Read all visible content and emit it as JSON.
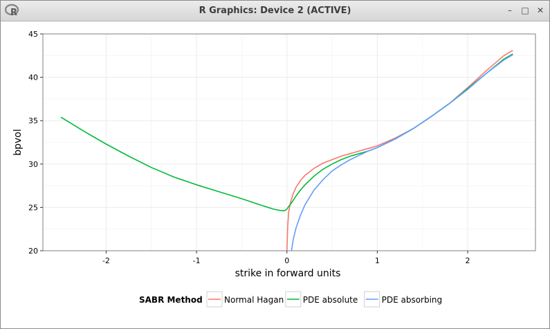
{
  "window": {
    "title": "R Graphics: Device 2 (ACTIVE)",
    "buttons": {
      "minimize": "–",
      "maximize": "□",
      "close": "✕"
    },
    "logo_icon": "r-logo-icon"
  },
  "chart_data": {
    "type": "line",
    "xlabel": "strike in forward units",
    "ylabel": "bpvol",
    "xlim": [
      -2.7,
      2.75
    ],
    "ylim": [
      20,
      45
    ],
    "xticks": [
      -2,
      -1,
      0,
      1,
      2
    ],
    "xtick_labels": [
      "-2",
      "-1",
      "0",
      "1",
      "2"
    ],
    "yticks": [
      20,
      25,
      30,
      35,
      40,
      45
    ],
    "ytick_labels": [
      "20",
      "25",
      "30",
      "35",
      "40",
      "45"
    ],
    "grid": true,
    "legend": {
      "position": "bottom",
      "title": "SABR Method"
    },
    "series": [
      {
        "name": "Normal Hagan",
        "color": "#F8766D",
        "points": [
          [
            0.0,
            20.0
          ],
          [
            0.01,
            23.0
          ],
          [
            0.02,
            24.5
          ],
          [
            0.04,
            25.6
          ],
          [
            0.07,
            26.6
          ],
          [
            0.1,
            27.3
          ],
          [
            0.15,
            28.1
          ],
          [
            0.2,
            28.7
          ],
          [
            0.3,
            29.5
          ],
          [
            0.4,
            30.1
          ],
          [
            0.5,
            30.5
          ],
          [
            0.6,
            30.9
          ],
          [
            0.7,
            31.2
          ],
          [
            0.8,
            31.5
          ],
          [
            0.9,
            31.8
          ],
          [
            1.0,
            32.1
          ],
          [
            1.2,
            33.0
          ],
          [
            1.4,
            34.1
          ],
          [
            1.6,
            35.5
          ],
          [
            1.8,
            37.0
          ],
          [
            2.0,
            38.8
          ],
          [
            2.2,
            40.7
          ],
          [
            2.4,
            42.5
          ],
          [
            2.5,
            43.1
          ]
        ]
      },
      {
        "name": "PDE absolute",
        "color": "#00BA38",
        "points": [
          [
            -2.5,
            35.4
          ],
          [
            -2.25,
            33.8
          ],
          [
            -2.0,
            32.3
          ],
          [
            -1.75,
            30.9
          ],
          [
            -1.5,
            29.6
          ],
          [
            -1.25,
            28.5
          ],
          [
            -1.0,
            27.6
          ],
          [
            -0.75,
            26.8
          ],
          [
            -0.5,
            26.0
          ],
          [
            -0.3,
            25.3
          ],
          [
            -0.15,
            24.8
          ],
          [
            -0.05,
            24.6
          ],
          [
            -0.02,
            24.65
          ],
          [
            0.0,
            24.8
          ],
          [
            0.02,
            25.1
          ],
          [
            0.05,
            25.5
          ],
          [
            0.1,
            26.3
          ],
          [
            0.15,
            27.0
          ],
          [
            0.2,
            27.6
          ],
          [
            0.3,
            28.6
          ],
          [
            0.4,
            29.4
          ],
          [
            0.5,
            30.0
          ],
          [
            0.6,
            30.5
          ],
          [
            0.7,
            30.9
          ],
          [
            0.8,
            31.2
          ],
          [
            0.9,
            31.5
          ],
          [
            1.0,
            31.9
          ],
          [
            1.2,
            32.9
          ],
          [
            1.4,
            34.1
          ],
          [
            1.6,
            35.5
          ],
          [
            1.8,
            37.0
          ],
          [
            2.0,
            38.7
          ],
          [
            2.2,
            40.4
          ],
          [
            2.4,
            42.1
          ],
          [
            2.5,
            42.7
          ]
        ]
      },
      {
        "name": "PDE absorbing",
        "color": "#619CFF",
        "points": [
          [
            0.05,
            20.0
          ],
          [
            0.07,
            21.3
          ],
          [
            0.1,
            22.6
          ],
          [
            0.15,
            24.1
          ],
          [
            0.2,
            25.3
          ],
          [
            0.3,
            27.0
          ],
          [
            0.4,
            28.2
          ],
          [
            0.5,
            29.2
          ],
          [
            0.6,
            29.9
          ],
          [
            0.7,
            30.5
          ],
          [
            0.8,
            31.0
          ],
          [
            0.9,
            31.5
          ],
          [
            1.0,
            31.9
          ],
          [
            1.2,
            32.9
          ],
          [
            1.4,
            34.1
          ],
          [
            1.6,
            35.5
          ],
          [
            1.8,
            37.0
          ],
          [
            2.0,
            38.6
          ],
          [
            2.2,
            40.4
          ],
          [
            2.4,
            42.0
          ],
          [
            2.5,
            42.6
          ]
        ]
      }
    ]
  }
}
